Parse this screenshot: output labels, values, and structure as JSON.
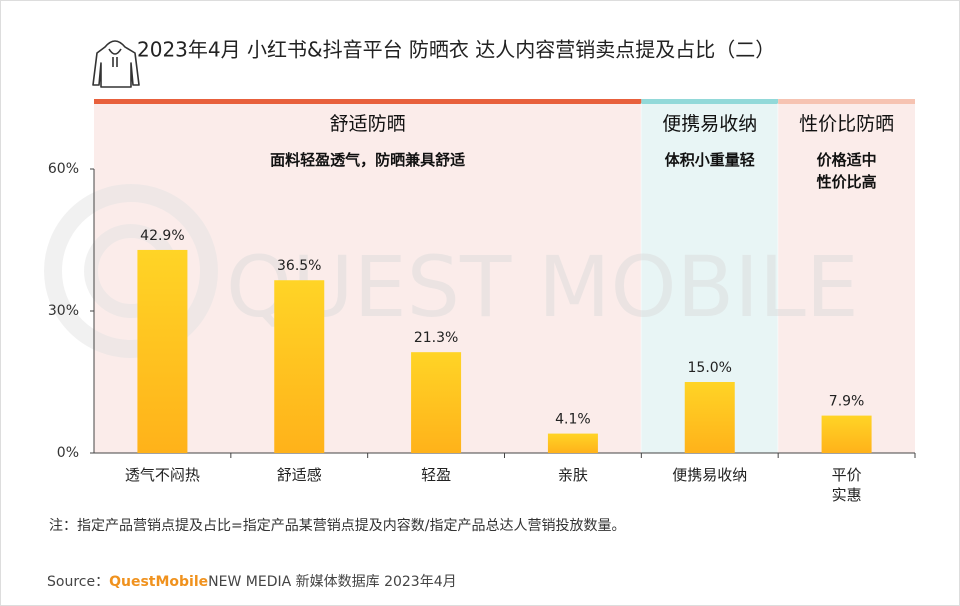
{
  "chart_data": {
    "type": "bar",
    "title": "2023年4月 小红书&抖音平台 防晒衣 达人内容营销卖点提及占比（二）",
    "watermark": "QUEST MOBILE",
    "ylim": [
      0,
      60
    ],
    "yticks": [
      {
        "value": 0,
        "label": "0%"
      },
      {
        "value": 30,
        "label": "30%"
      },
      {
        "value": 60,
        "label": "60%"
      }
    ],
    "bar_color": [
      "#ffd426",
      "#ffb21a"
    ],
    "groups": [
      {
        "title": "舒适防晒",
        "subtitle": "面料轻盈透气，防晒兼具舒适",
        "color": "#e8603c",
        "background": "#fbecea",
        "categories": [
          "透气不闷热",
          "舒适感",
          "轻盈",
          "亲肤"
        ],
        "values": [
          42.9,
          36.5,
          21.3,
          4.1
        ],
        "value_labels": [
          "42.9%",
          "36.5%",
          "21.3%",
          "4.1%"
        ]
      },
      {
        "title": "便携易收纳",
        "subtitle": "体积小重量轻",
        "color": "#92d9d9",
        "background": "#e8f5f5",
        "categories": [
          "便携易收纳"
        ],
        "values": [
          15.0
        ],
        "value_labels": [
          "15.0%"
        ]
      },
      {
        "title": "性价比防晒",
        "subtitle": "价格适中\n性价比高",
        "color": "#f6c3b2",
        "background": "#fbecea",
        "categories": [
          "平价\n实惠"
        ],
        "values": [
          7.9
        ],
        "value_labels": [
          "7.9%"
        ]
      }
    ],
    "note": "注：指定产品营销点提及占比=指定产品某营销点提及内容数/指定产品总达人营销投放数量。",
    "source": {
      "label": "Source：",
      "brand": "QuestMobile",
      "text": "NEW MEDIA 新媒体数据库 2023年4月"
    }
  }
}
